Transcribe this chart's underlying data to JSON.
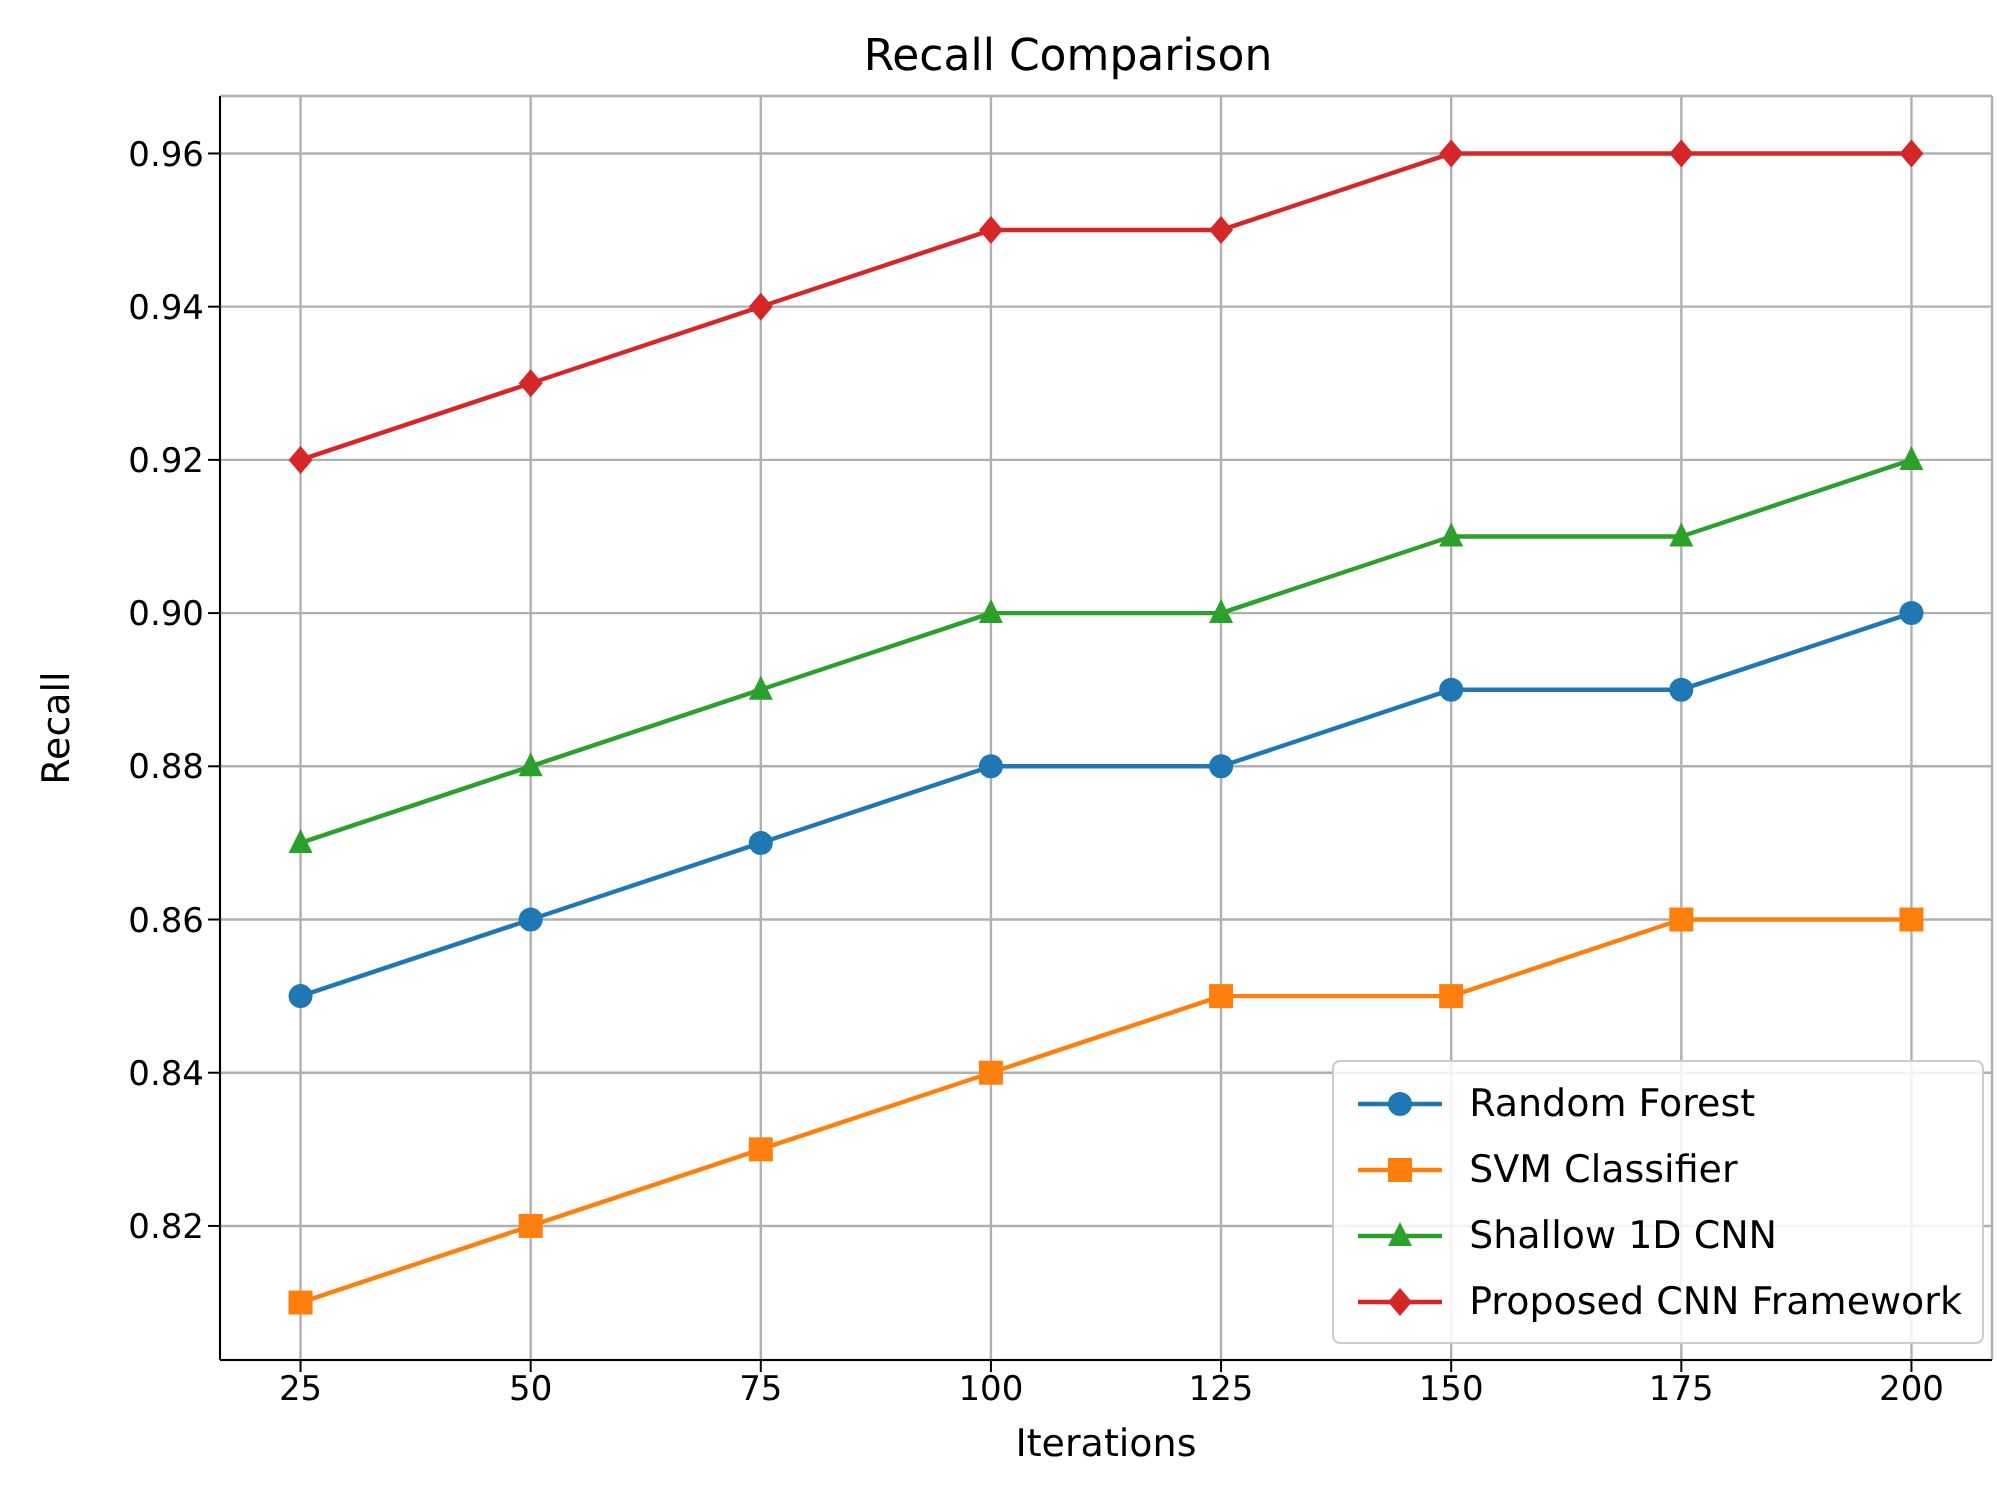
{
  "chart_data": {
    "type": "line",
    "title": "Recall Comparison",
    "xlabel": "Iterations",
    "ylabel": "Recall",
    "x": [
      25,
      50,
      75,
      100,
      125,
      150,
      175,
      200
    ],
    "series": [
      {
        "name": "Random Forest",
        "color": "#1f77b4",
        "marker": "circle",
        "values": [
          0.85,
          0.86,
          0.87,
          0.88,
          0.88,
          0.89,
          0.89,
          0.9
        ]
      },
      {
        "name": "SVM Classifier",
        "color": "#ff7f0e",
        "marker": "square",
        "values": [
          0.81,
          0.82,
          0.83,
          0.84,
          0.85,
          0.85,
          0.86,
          0.86
        ]
      },
      {
        "name": "Shallow 1D CNN",
        "color": "#2ca02c",
        "marker": "triangle",
        "values": [
          0.87,
          0.88,
          0.89,
          0.9,
          0.9,
          0.91,
          0.91,
          0.92
        ]
      },
      {
        "name": "Proposed CNN Framework",
        "color": "#d62728",
        "marker": "diamond",
        "values": [
          0.92,
          0.93,
          0.94,
          0.95,
          0.95,
          0.96,
          0.96,
          0.96
        ]
      }
    ],
    "xlim": [
      16.25,
      208.75
    ],
    "xticks": [
      25,
      50,
      75,
      100,
      125,
      150,
      175,
      200
    ],
    "ylim": [
      0.8025,
      0.9675
    ],
    "yticks": [
      0.82,
      0.84,
      0.86,
      0.88,
      {
        "value": 0.9,
        "label": "0.90"
      },
      0.92,
      0.94,
      0.96
    ],
    "grid": true,
    "legend": "bottom right",
    "line_style": "solid"
  }
}
